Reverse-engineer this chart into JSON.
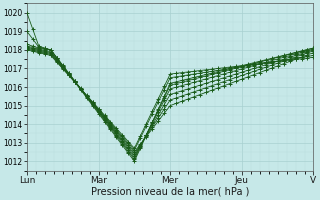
{
  "bg_color": "#c6e8e8",
  "grid_color_major": "#a8d0d0",
  "grid_color_minor": "#b8dcdc",
  "line_color": "#1a5c1a",
  "xlabel": "Pression niveau de la mer( hPa )",
  "xlabel_fontsize": 7,
  "xtick_labels": [
    "Lun",
    "Mar",
    "Mer",
    "Jeu",
    "V"
  ],
  "xtick_positions": [
    0,
    48,
    96,
    144,
    192
  ],
  "ylim": [
    1011.5,
    1020.5
  ],
  "yticks": [
    1012,
    1013,
    1014,
    1015,
    1016,
    1017,
    1018,
    1019,
    1020
  ],
  "ytick_fontsize": 5.5,
  "xtick_fontsize": 6.5,
  "series": [
    [
      1020.0,
      1018.2,
      1018.0,
      1012.0,
      1016.2,
      1018.1
    ],
    [
      1019.0,
      1018.15,
      1018.0,
      1012.1,
      1016.1,
      1018.1
    ],
    [
      1018.3,
      1018.1,
      1018.0,
      1012.2,
      1015.9,
      1018.05
    ],
    [
      1018.2,
      1018.05,
      1017.9,
      1012.3,
      1015.6,
      1018.0
    ],
    [
      1018.15,
      1018.0,
      1017.85,
      1012.4,
      1015.3,
      1017.95
    ],
    [
      1018.1,
      1017.95,
      1017.8,
      1012.5,
      1015.0,
      1017.85
    ],
    [
      1018.05,
      1017.9,
      1017.75,
      1012.6,
      1016.5,
      1017.7
    ],
    [
      1018.0,
      1017.85,
      1017.7,
      1012.7,
      1016.7,
      1017.6
    ]
  ],
  "key_positions": [
    0,
    8,
    16,
    72,
    96,
    192
  ]
}
